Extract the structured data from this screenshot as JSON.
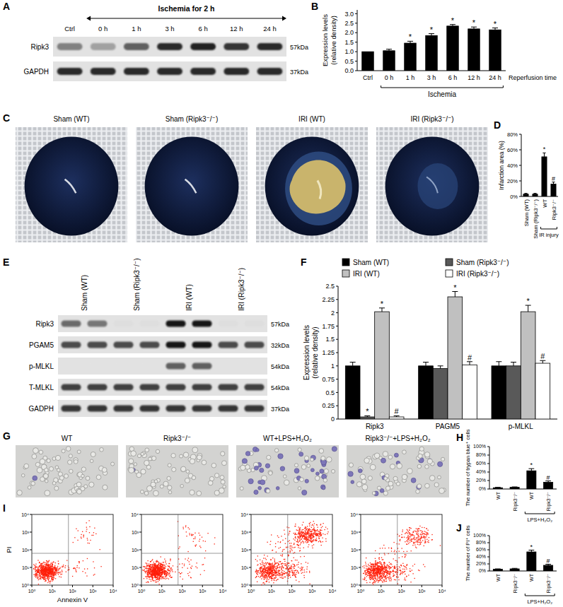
{
  "panel_letters": [
    "A",
    "B",
    "C",
    "D",
    "E",
    "F",
    "G",
    "H",
    "I",
    "J"
  ],
  "blot_a": {
    "header": "Ischemia for 2 h",
    "lanes": [
      "Ctrl",
      "0 h",
      "1 h",
      "3 h",
      "6 h",
      "12 h",
      "24 h"
    ],
    "rows": [
      {
        "name": "Ripk3",
        "size": "57kDa",
        "bands": [
          0.45,
          0.3,
          0.6,
          0.85,
          0.9,
          0.8,
          0.85
        ]
      },
      {
        "name": "GAPDH",
        "size": "37kDa",
        "bands": [
          0.85,
          0.85,
          0.85,
          0.85,
          0.85,
          0.85,
          0.85
        ]
      }
    ]
  },
  "chart_data": [
    {
      "type": "bar",
      "ylabel": [
        "Expression levels",
        "(relative density)"
      ],
      "xlabel": "Reperfusion time",
      "categories": [
        "Ctrl",
        "0 h",
        "1 h",
        "3 h",
        "6 h",
        "12 h",
        "24 h"
      ],
      "values": [
        1.0,
        1.05,
        1.45,
        1.85,
        2.35,
        2.2,
        2.15
      ],
      "errors": [
        0,
        0.08,
        0.1,
        0.1,
        0.08,
        0.1,
        0.1
      ],
      "significance": [
        null,
        null,
        "*",
        "*",
        "*",
        "*",
        "*"
      ],
      "color": "#000000",
      "ylim": [
        0,
        3.2
      ],
      "yticks": [
        {
          "value": 0,
          "label": "0.0"
        },
        0.5,
        {
          "value": 1,
          "label": "1.0"
        },
        1.5,
        {
          "value": 2,
          "label": "2.0"
        },
        2.5,
        {
          "value": 3,
          "label": "3.0"
        }
      ],
      "groups": [
        {
          "label": "Ischemia",
          "from": 1,
          "to": 6
        }
      ]
    },
    {
      "type": "bar",
      "ylabel": "Infarction area (%)",
      "categories": [
        "Sham (WT)",
        "Sham (Ripk3⁻/⁻)",
        "WT",
        "Ripk3⁻/⁻"
      ],
      "values": [
        3,
        3,
        51,
        16
      ],
      "errors": [
        1,
        1,
        5,
        2.5
      ],
      "significance": [
        null,
        null,
        "*",
        "#"
      ],
      "color": "#000000",
      "ylim": [
        0,
        80
      ],
      "yticks": [
        {
          "value": 0,
          "label": "0%"
        },
        {
          "value": 20,
          "label": "20%"
        },
        {
          "value": 40,
          "label": "40%"
        },
        {
          "value": 60,
          "label": "60%"
        },
        {
          "value": 80,
          "label": "80%"
        }
      ],
      "groups": [
        {
          "label": "IR injury",
          "from": 2,
          "to": 3
        }
      ]
    },
    {
      "type": "bar",
      "ylabel": [
        "Expression levels",
        "(relative density)"
      ],
      "categories": [
        "Ripk3",
        "PAGM5",
        "p-MLKL"
      ],
      "series": [
        {
          "name": "Sham (WT)",
          "color": "#000000",
          "values": [
            1.0,
            1.0,
            1.0
          ],
          "errors": [
            0.07,
            0.07,
            0.08
          ]
        },
        {
          "name": "Sham (Ripk3⁻/⁻)",
          "color": "#595959",
          "values": [
            0.04,
            0.95,
            1.0
          ],
          "errors": [
            0.02,
            0.05,
            0.07
          ],
          "significance": [
            "*",
            null,
            null
          ]
        },
        {
          "name": "IRI (WT)",
          "color": "#c0c0c0",
          "values": [
            2.02,
            2.3,
            2.02
          ],
          "errors": [
            0.07,
            0.1,
            0.12
          ],
          "significance": [
            "*",
            "*",
            "*"
          ]
        },
        {
          "name": "IRI (Ripk3⁻/⁻)",
          "color": "#ffffff",
          "values": [
            0.04,
            1.02,
            1.05
          ],
          "errors": [
            0.02,
            0.06,
            0.05
          ],
          "significance": [
            "#",
            "#",
            "#"
          ]
        }
      ],
      "legend": "top",
      "ylim": [
        0,
        2.5
      ],
      "yticks": [
        0,
        0.25,
        0.5,
        0.75,
        1,
        1.25,
        1.5,
        1.75,
        2,
        2.25,
        2.5
      ]
    },
    {
      "type": "bar",
      "ylabel": "The number of trypan blue⁺ cells",
      "categories": [
        "WT",
        "Ripk3⁻/⁻",
        "WT",
        "Ripk3⁻/⁻"
      ],
      "values": [
        3,
        4,
        43,
        16
      ],
      "errors": [
        1,
        1,
        5,
        3
      ],
      "significance": [
        null,
        null,
        "*",
        "#"
      ],
      "color": "#000000",
      "ylim": [
        0,
        100
      ],
      "yticks": [
        {
          "value": 0,
          "label": "0%"
        },
        {
          "value": 20,
          "label": "20%"
        },
        {
          "value": 40,
          "label": "40%"
        },
        {
          "value": 60,
          "label": "60%"
        },
        {
          "value": 80,
          "label": "80%"
        },
        {
          "value": 100,
          "label": "100%"
        }
      ],
      "groups": [
        {
          "label": "LPS+H₂O₂",
          "from": 2,
          "to": 3
        }
      ]
    },
    {
      "type": "bar",
      "ylabel": "The number of PI⁺ cells",
      "categories": [
        "WT",
        "Ripk3⁻/⁻",
        "WT",
        "Ripk3⁻/⁻"
      ],
      "values": [
        5,
        6,
        54,
        16
      ],
      "errors": [
        1,
        1.5,
        5,
        3
      ],
      "significance": [
        null,
        null,
        "*",
        "#"
      ],
      "color": "#000000",
      "ylim": [
        0,
        100
      ],
      "yticks": [
        {
          "value": 0,
          "label": "0%"
        },
        {
          "value": 20,
          "label": "20%"
        },
        {
          "value": 40,
          "label": "40%"
        },
        {
          "value": 60,
          "label": "60%"
        },
        {
          "value": 80,
          "label": "80%"
        },
        {
          "value": 100,
          "label": "100%"
        }
      ],
      "groups": [
        {
          "label": "LPS+H₂O₂",
          "from": 2,
          "to": 3
        }
      ]
    }
  ],
  "photos_c": {
    "labels": [
      "Sham (WT)",
      "Sham (Ripk3⁻/⁻)",
      "IRI (WT)",
      "IRI (Ripk3⁻/⁻)"
    ]
  },
  "blot_e": {
    "lanes": [
      "Sham (WT)",
      "Sham (Ripk3⁻/⁻)",
      "IRI (WT)",
      "IRI (Ripk3⁻/⁻)"
    ],
    "rows": [
      {
        "name": "Ripk3",
        "size": "57kDa",
        "bands": [
          0.55,
          0.5,
          0.02,
          0.02,
          0.95,
          0.95,
          0.02,
          0.02
        ]
      },
      {
        "name": "PGAM5",
        "size": "32kDa",
        "bands": [
          0.7,
          0.7,
          0.7,
          0.7,
          0.95,
          0.95,
          0.7,
          0.7
        ]
      },
      {
        "name": "p-MLKL",
        "size": "54kDa",
        "bands": [
          0,
          0,
          0,
          0,
          0.6,
          0.6,
          0,
          0
        ]
      },
      {
        "name": "T-MLKL",
        "size": "54kDa",
        "bands": [
          0.75,
          0.75,
          0.75,
          0.75,
          0.75,
          0.75,
          0.75,
          0.75
        ]
      },
      {
        "name": "GADPH",
        "size": "37kDa",
        "bands": [
          0.8,
          0.8,
          0.8,
          0.8,
          0.8,
          0.8,
          0.8,
          0.8
        ]
      }
    ]
  },
  "photos_g": {
    "labels": [
      "WT",
      "Ripk3⁻/⁻",
      "WT+LPS+H₂O₂",
      "Ripk3⁻/⁻+LPS+H₂O₂"
    ]
  },
  "flow_i": {
    "type": "scatter",
    "xlabel": "Annexin V",
    "ylabel": "PI",
    "log": true,
    "xlim": [
      1,
      10000
    ],
    "ylim": [
      1,
      10000
    ],
    "xticks": [
      {
        "value": 1,
        "label": "10⁰"
      },
      {
        "value": 10,
        "label": "10¹"
      },
      {
        "value": 100,
        "label": "10²"
      },
      {
        "value": 1000,
        "label": "10³"
      },
      {
        "value": 10000,
        "label": "10⁴"
      }
    ],
    "yticks": [
      {
        "value": 1,
        "label": "10⁰"
      },
      {
        "value": 10,
        "label": "10¹"
      },
      {
        "value": 100,
        "label": "10²"
      },
      {
        "value": 1000,
        "label": "10³"
      },
      {
        "value": 10000,
        "label": "10⁴"
      }
    ]
  }
}
